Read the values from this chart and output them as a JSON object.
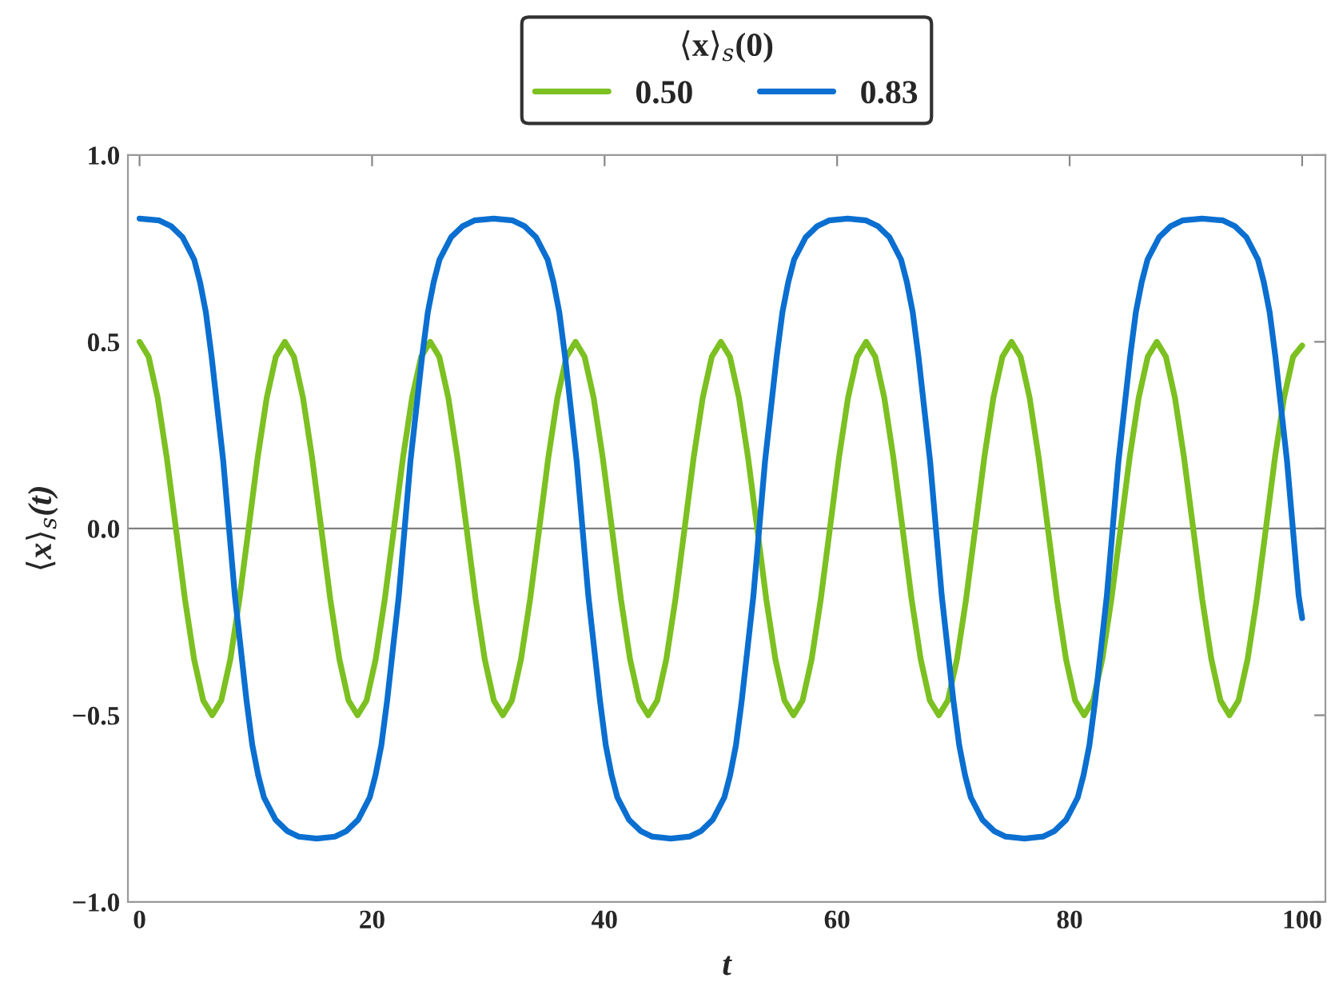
{
  "chart_data": {
    "type": "line",
    "xlabel": "t",
    "ylabel": "⟨x⟩$_{s}$(t)",
    "legend_title": "⟨x⟩$_{s}$(0)",
    "legend": "top",
    "xlim": [
      -1,
      102
    ],
    "ylim": [
      -1.0,
      1.0
    ],
    "xticks": [
      0,
      20,
      40,
      60,
      80,
      100
    ],
    "yticks": [
      {
        "value": -1.0,
        "label": "−1.0"
      },
      {
        "value": -0.5,
        "label": "−0.5"
      },
      {
        "value": 0.0,
        "label": "0.0"
      },
      {
        "value": 0.5,
        "label": "0.5"
      },
      {
        "value": 1.0,
        "label": "1.0"
      }
    ],
    "grid": false,
    "marker": "none",
    "line_style": "solid",
    "ref_lines": [
      {
        "axis": "y",
        "value": 0,
        "label": null,
        "color": "#808080"
      }
    ],
    "series": [
      {
        "name": "0.50",
        "color": "#7cc021",
        "x": [
          0,
          0.78,
          1.56,
          2.34,
          3.13,
          3.91,
          4.69,
          5.47,
          6.25,
          7.03,
          7.81,
          8.59,
          9.38,
          10.16,
          10.94,
          11.72,
          12.5,
          13.28,
          14.06,
          14.84,
          15.63,
          16.41,
          17.19,
          17.97,
          18.75,
          19.53,
          20.31,
          21.09,
          21.88,
          22.66,
          23.44,
          24.22,
          25,
          25.78,
          26.56,
          27.34,
          28.13,
          28.91,
          29.69,
          30.47,
          31.25,
          32.03,
          32.81,
          33.59,
          34.38,
          35.16,
          35.94,
          36.72,
          37.5,
          38.28,
          39.06,
          39.84,
          40.63,
          41.41,
          42.19,
          42.97,
          43.75,
          44.53,
          45.31,
          46.09,
          46.88,
          47.66,
          48.44,
          49.22,
          50,
          50.78,
          51.56,
          52.34,
          53.13,
          53.91,
          54.69,
          55.47,
          56.25,
          57.03,
          57.81,
          58.59,
          59.38,
          60.16,
          60.94,
          61.72,
          62.5,
          63.28,
          64.06,
          64.84,
          65.63,
          66.41,
          67.19,
          67.97,
          68.75,
          69.53,
          70.31,
          71.09,
          71.88,
          72.66,
          73.44,
          74.22,
          75,
          75.78,
          76.56,
          77.34,
          78.13,
          78.91,
          79.69,
          80.47,
          81.25,
          82.03,
          82.81,
          83.59,
          84.38,
          85.16,
          85.94,
          86.72,
          87.5,
          88.28,
          89.06,
          89.84,
          90.63,
          91.41,
          92.19,
          92.97,
          93.75,
          94.53,
          95.31,
          96.09,
          96.88,
          97.66,
          98.44,
          99.22,
          100
        ],
        "values": [
          0.5,
          0.46,
          0.35,
          0.19,
          0,
          -0.19,
          -0.35,
          -0.46,
          -0.5,
          -0.46,
          -0.35,
          -0.19,
          0,
          0.19,
          0.35,
          0.46,
          0.5,
          0.46,
          0.35,
          0.19,
          0,
          -0.19,
          -0.35,
          -0.46,
          -0.5,
          -0.46,
          -0.35,
          -0.19,
          0,
          0.19,
          0.35,
          0.46,
          0.5,
          0.46,
          0.35,
          0.19,
          0,
          -0.19,
          -0.35,
          -0.46,
          -0.5,
          -0.46,
          -0.35,
          -0.19,
          0,
          0.19,
          0.35,
          0.46,
          0.5,
          0.46,
          0.35,
          0.19,
          0,
          -0.19,
          -0.35,
          -0.46,
          -0.5,
          -0.46,
          -0.35,
          -0.19,
          0,
          0.19,
          0.35,
          0.46,
          0.5,
          0.46,
          0.35,
          0.19,
          0,
          -0.19,
          -0.35,
          -0.46,
          -0.5,
          -0.46,
          -0.35,
          -0.19,
          0,
          0.19,
          0.35,
          0.46,
          0.5,
          0.46,
          0.35,
          0.19,
          0,
          -0.19,
          -0.35,
          -0.46,
          -0.5,
          -0.46,
          -0.35,
          -0.19,
          0,
          0.19,
          0.35,
          0.46,
          0.5,
          0.46,
          0.35,
          0.19,
          0,
          -0.19,
          -0.35,
          -0.46,
          -0.5,
          -0.46,
          -0.35,
          -0.19,
          0,
          0.19,
          0.35,
          0.46,
          0.5,
          0.46,
          0.35,
          0.19,
          0,
          -0.19,
          -0.35,
          -0.46,
          -0.5,
          -0.46,
          -0.35,
          -0.19,
          0,
          0.19,
          0.35,
          0.46,
          0.49
        ]
      },
      {
        "name": "0.83",
        "color": "#0a6fd0",
        "x": [
          0,
          1.7,
          2.7,
          3.7,
          4.7,
          5.2,
          5.7,
          6.2,
          6.7,
          7.2,
          7.7,
          8.2,
          8.7,
          9.2,
          9.7,
          10.2,
          10.7,
          11.7,
          12.7,
          13.7,
          15.25,
          16.8,
          17.8,
          18.8,
          19.8,
          20.3,
          20.8,
          21.3,
          21.8,
          22.3,
          22.8,
          23.3,
          23.8,
          24.3,
          24.8,
          25.3,
          25.8,
          26.8,
          27.8,
          28.8,
          30.45,
          32.1,
          33.1,
          34.1,
          35.1,
          35.6,
          36.1,
          36.6,
          37.1,
          37.6,
          38.1,
          38.6,
          39.1,
          39.6,
          40.1,
          40.6,
          41.1,
          42.1,
          43.1,
          44.1,
          45.7,
          47.3,
          48.3,
          49.3,
          50.3,
          50.8,
          51.3,
          51.8,
          52.3,
          52.8,
          53.3,
          53.8,
          54.3,
          54.8,
          55.3,
          55.8,
          56.3,
          57.3,
          58.3,
          59.3,
          60.9,
          62.5,
          63.5,
          64.5,
          65.5,
          66.0,
          66.5,
          67.0,
          67.5,
          68.0,
          68.5,
          69.0,
          69.5,
          70.0,
          70.5,
          71.0,
          71.5,
          72.5,
          73.5,
          74.5,
          76.1,
          77.7,
          78.7,
          79.7,
          80.7,
          81.2,
          81.7,
          82.2,
          82.7,
          83.2,
          83.7,
          84.2,
          84.7,
          85.2,
          85.7,
          86.2,
          86.7,
          87.7,
          88.7,
          89.7,
          91.4,
          93.2,
          94.2,
          95.2,
          96.2,
          96.7,
          97.2,
          97.7,
          98.2,
          98.7,
          99.2,
          99.7,
          100
        ],
        "values": [
          0.83,
          0.825,
          0.81,
          0.78,
          0.72,
          0.66,
          0.58,
          0.46,
          0.32,
          0.18,
          0,
          -0.18,
          -0.32,
          -0.46,
          -0.58,
          -0.66,
          -0.72,
          -0.78,
          -0.81,
          -0.825,
          -0.83,
          -0.825,
          -0.81,
          -0.78,
          -0.72,
          -0.66,
          -0.58,
          -0.46,
          -0.32,
          -0.18,
          0,
          0.18,
          0.32,
          0.46,
          0.58,
          0.66,
          0.72,
          0.78,
          0.81,
          0.825,
          0.83,
          0.825,
          0.81,
          0.78,
          0.72,
          0.66,
          0.58,
          0.46,
          0.32,
          0.18,
          0,
          -0.18,
          -0.32,
          -0.46,
          -0.58,
          -0.66,
          -0.72,
          -0.78,
          -0.81,
          -0.825,
          -0.83,
          -0.825,
          -0.81,
          -0.78,
          -0.72,
          -0.66,
          -0.58,
          -0.46,
          -0.32,
          -0.18,
          0,
          0.18,
          0.32,
          0.46,
          0.58,
          0.66,
          0.72,
          0.78,
          0.81,
          0.825,
          0.83,
          0.825,
          0.81,
          0.78,
          0.72,
          0.66,
          0.58,
          0.46,
          0.32,
          0.18,
          0,
          -0.18,
          -0.32,
          -0.46,
          -0.58,
          -0.66,
          -0.72,
          -0.78,
          -0.81,
          -0.825,
          -0.83,
          -0.825,
          -0.81,
          -0.78,
          -0.72,
          -0.66,
          -0.58,
          -0.46,
          -0.32,
          -0.18,
          0,
          0.18,
          0.32,
          0.46,
          0.58,
          0.66,
          0.72,
          0.78,
          0.81,
          0.825,
          0.83,
          0.825,
          0.81,
          0.78,
          0.72,
          0.66,
          0.58,
          0.46,
          0.32,
          0.18,
          0,
          -0.18,
          -0.24
        ]
      }
    ]
  }
}
